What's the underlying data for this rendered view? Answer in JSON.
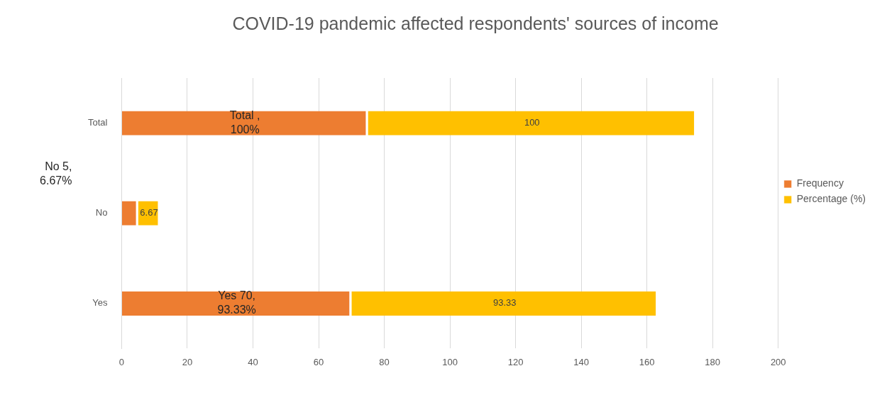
{
  "chart_data": {
    "type": "bar",
    "title": "COVID-19 pandemic affected respondents' sources of income",
    "orientation": "horizontal",
    "stacked": true,
    "categories": [
      "Total",
      "No",
      "Yes"
    ],
    "series": [
      {
        "name": "Frequency",
        "color": "#ed7d31",
        "values": [
          75,
          5,
          70
        ]
      },
      {
        "name": "Percentage (%)",
        "color": "#ffc000",
        "values": [
          100,
          6.67,
          93.33
        ],
        "value_labels": [
          "100",
          "6.67",
          "93.33"
        ]
      }
    ],
    "annotations": [
      "Total , 100%",
      "No 5, 6.67%",
      "Yes 70, 93.33%"
    ],
    "xlim": [
      0,
      200
    ],
    "xticks": [
      0,
      20,
      40,
      60,
      80,
      100,
      120,
      140,
      160,
      180,
      200
    ],
    "grid": "x",
    "legend": "right"
  }
}
